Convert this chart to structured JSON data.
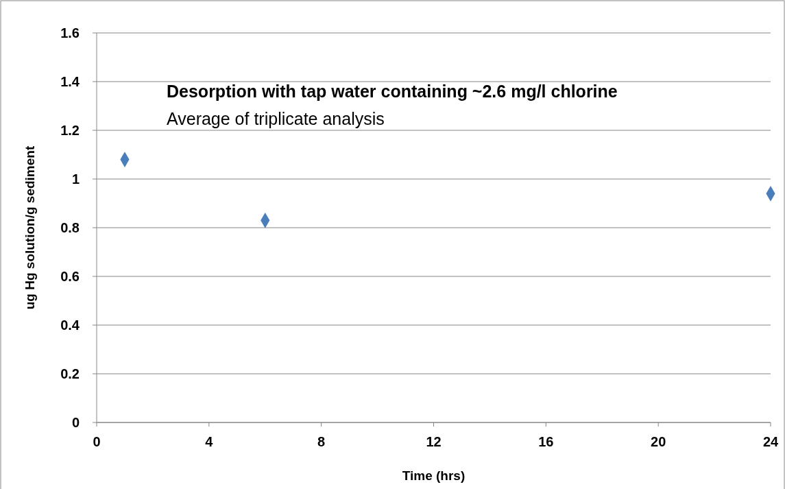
{
  "chart_data": {
    "type": "scatter",
    "title": "Desorption with tap water containing  ~2.6 mg/l chlorine",
    "subtitle": "Average of triplicate analysis",
    "xlabel": "Time (hrs)",
    "ylabel": "ug Hg solution/g  sediment",
    "x": [
      1,
      6,
      24
    ],
    "values": [
      1.08,
      0.83,
      0.94
    ],
    "color": "#4a7ebb",
    "xlim": [
      0,
      24
    ],
    "xticks": [
      0,
      4,
      8,
      12,
      16,
      20,
      24
    ],
    "ylim": [
      0,
      1.6
    ],
    "yticks": [
      0,
      0.2,
      0.4,
      0.6,
      0.8,
      1,
      1.2,
      1.4,
      1.6
    ],
    "grid": "y",
    "marker": "diamond"
  }
}
